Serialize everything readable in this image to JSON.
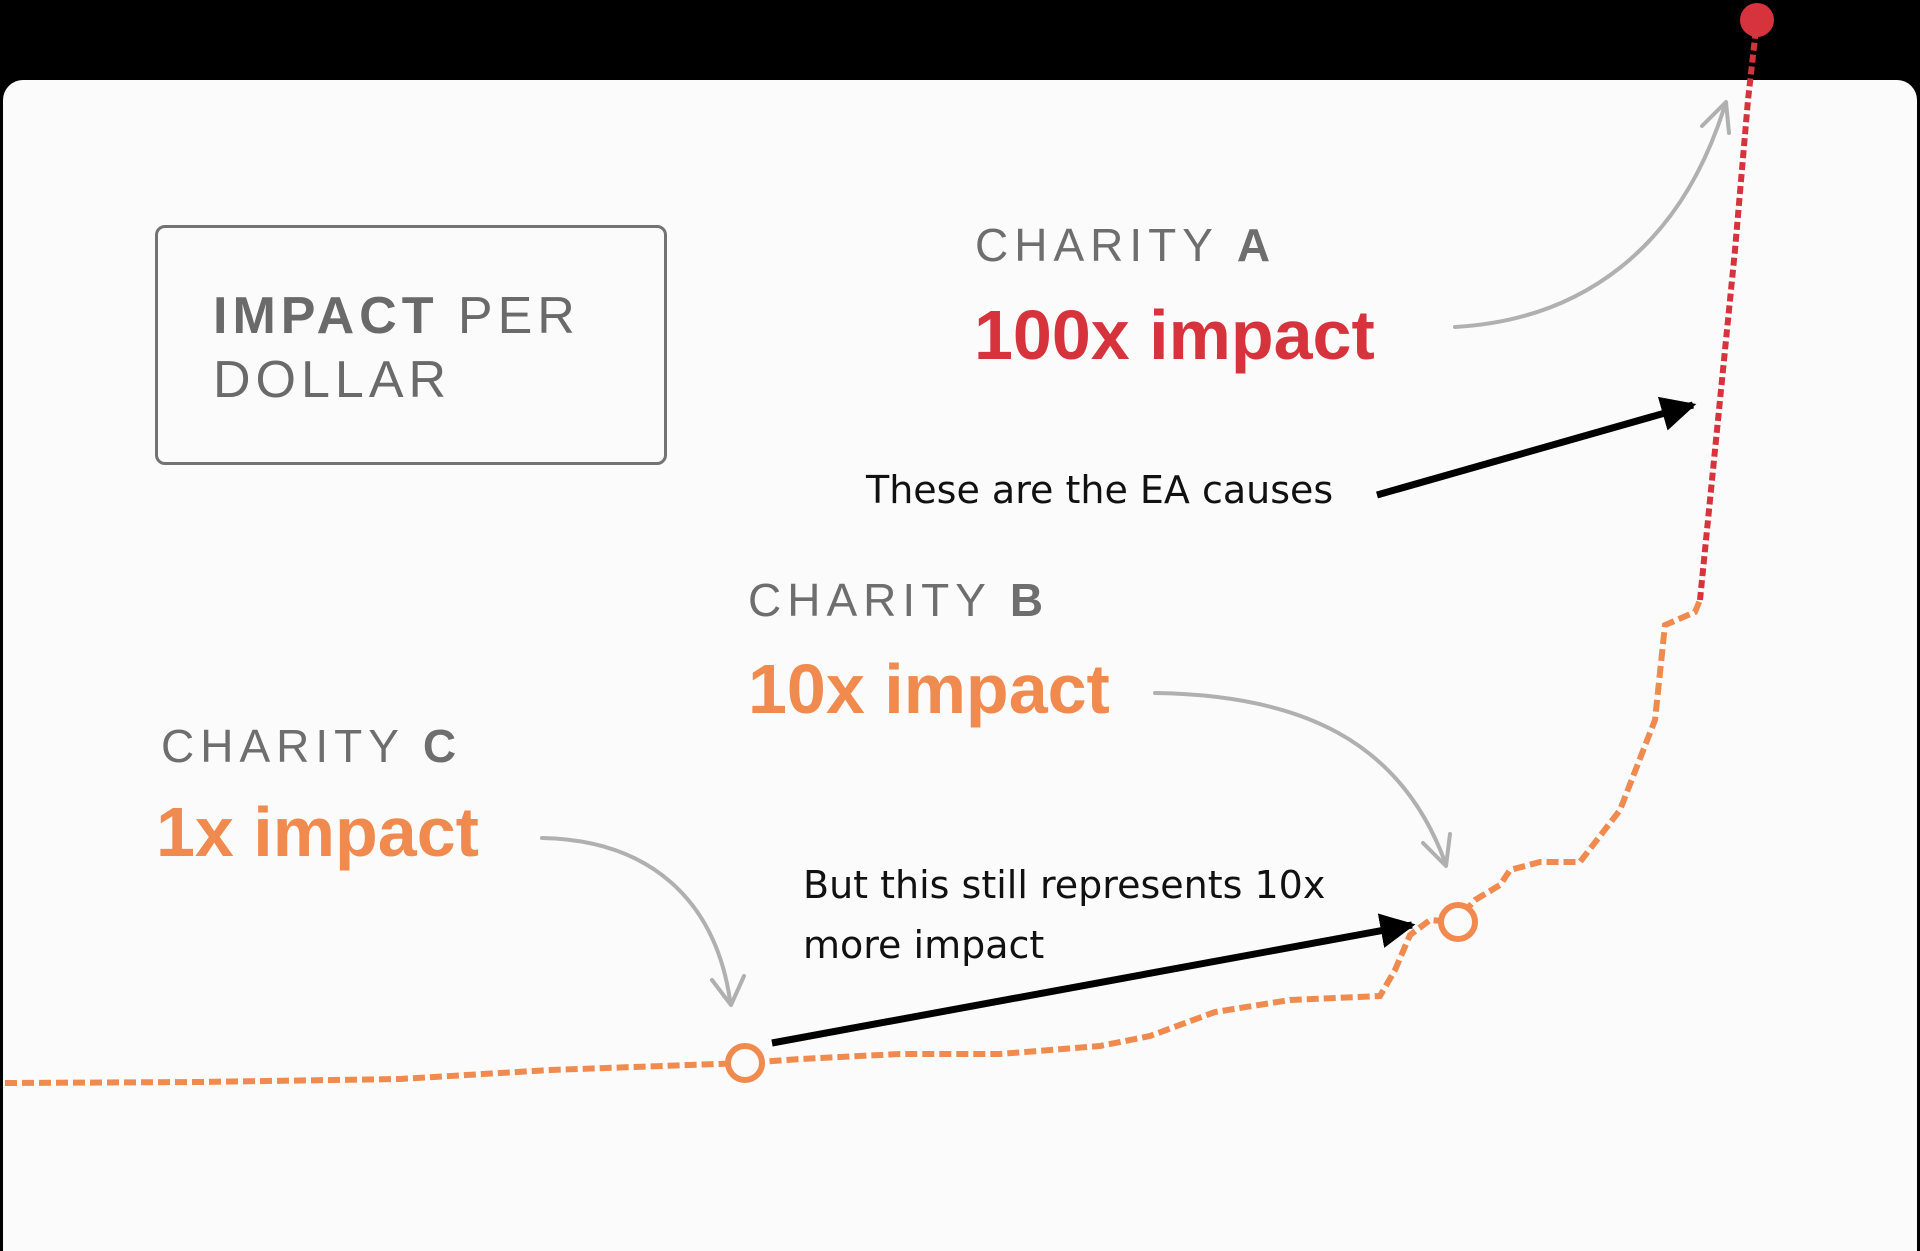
{
  "legend": {
    "bold": "IMPACT",
    "rest": "PER",
    "line2": "DOLLAR"
  },
  "charities": [
    {
      "prefix": "CHARITY",
      "letter": "A",
      "impact": "100x impact",
      "color": "#d6333d"
    },
    {
      "prefix": "CHARITY",
      "letter": "B",
      "impact": "10x impact",
      "color": "#f08a4e"
    },
    {
      "prefix": "CHARITY",
      "letter": "C",
      "impact": "1x impact",
      "color": "#f08a4e"
    }
  ],
  "annotations": {
    "ea": "These are the EA causes",
    "still_line1": "But this still represents 10x",
    "still_line2": "more impact"
  },
  "colors": {
    "curve_orange": "#f08a4e",
    "curve_red": "#d6333d",
    "arrow_grey": "#b0b0b0",
    "arrow_black": "#000000"
  }
}
